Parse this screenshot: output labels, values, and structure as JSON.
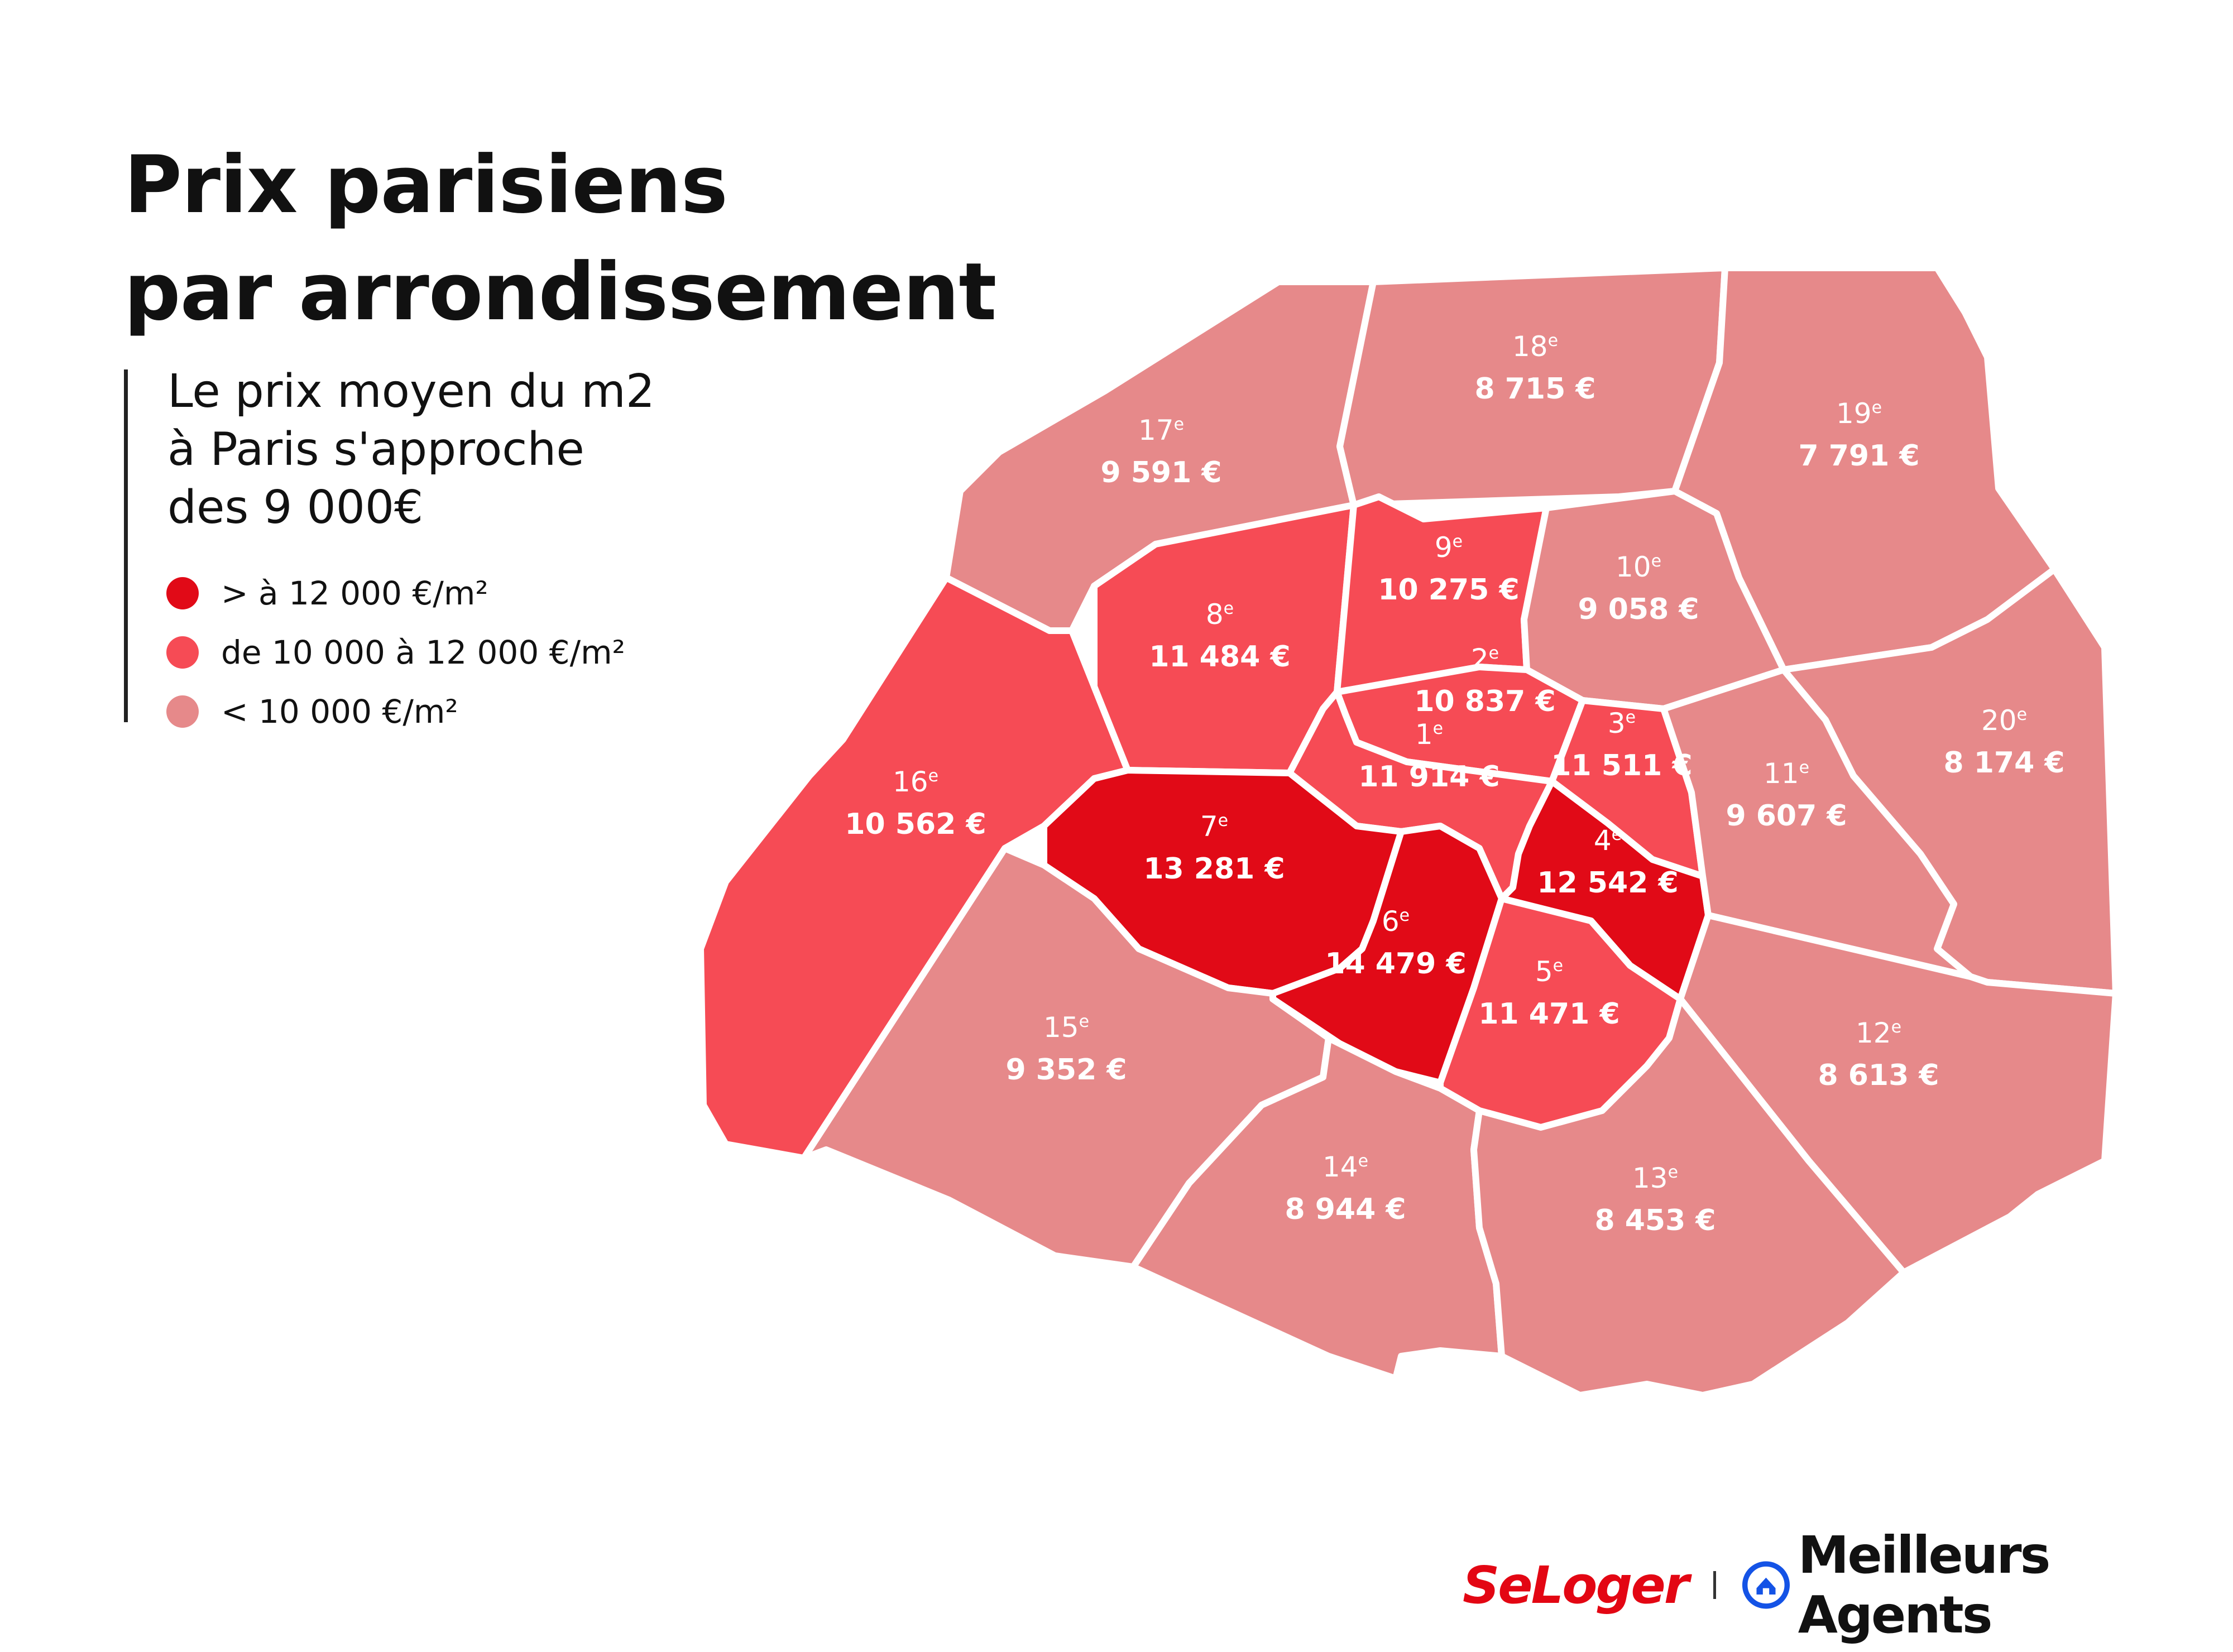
{
  "title": {
    "line1": "Prix parisiens",
    "line2": "par arrondissement"
  },
  "subtitle": {
    "line1": "Le prix moyen du m2",
    "line2": "à Paris s'approche",
    "line3": "des 9 000€"
  },
  "colors": {
    "high": "#e10a17",
    "mid": "#f64b55",
    "low": "#e6898a",
    "border": "#ffffff"
  },
  "legend": [
    {
      "label": "> à 12 000 €/m²",
      "level": "high"
    },
    {
      "label": "de 10 000 à 12 000 €/m²",
      "level": "mid"
    },
    {
      "label": "< 10 000 €/m²",
      "level": "low"
    }
  ],
  "arrondissements": [
    {
      "id": "1",
      "num": "1",
      "sup": "e",
      "price": "11 914 €",
      "level": "mid"
    },
    {
      "id": "2",
      "num": "2",
      "sup": "e",
      "price": "10 837 €",
      "level": "mid"
    },
    {
      "id": "3",
      "num": "3",
      "sup": "e",
      "price": "11 511 €",
      "level": "mid"
    },
    {
      "id": "4",
      "num": "4",
      "sup": "e",
      "price": "12 542 €",
      "level": "high"
    },
    {
      "id": "5",
      "num": "5",
      "sup": "e",
      "price": "11 471 €",
      "level": "mid"
    },
    {
      "id": "6",
      "num": "6",
      "sup": "e",
      "price": "14 479 €",
      "level": "high"
    },
    {
      "id": "7",
      "num": "7",
      "sup": "e",
      "price": "13 281 €",
      "level": "high"
    },
    {
      "id": "8",
      "num": "8",
      "sup": "e",
      "price": "11 484 €",
      "level": "mid"
    },
    {
      "id": "9",
      "num": "9",
      "sup": "e",
      "price": "10 275 €",
      "level": "mid"
    },
    {
      "id": "10",
      "num": "10",
      "sup": "e",
      "price": "9 058 €",
      "level": "low"
    },
    {
      "id": "11",
      "num": "11",
      "sup": "e",
      "price": "9 607 €",
      "level": "low"
    },
    {
      "id": "12",
      "num": "12",
      "sup": "e",
      "price": "8 613 €",
      "level": "low"
    },
    {
      "id": "13",
      "num": "13",
      "sup": "e",
      "price": "8 453 €",
      "level": "low"
    },
    {
      "id": "14",
      "num": "14",
      "sup": "e",
      "price": "8 944 €",
      "level": "low"
    },
    {
      "id": "15",
      "num": "15",
      "sup": "e",
      "price": "9 352 €",
      "level": "low"
    },
    {
      "id": "16",
      "num": "16",
      "sup": "e",
      "price": "10 562 €",
      "level": "mid"
    },
    {
      "id": "17",
      "num": "17",
      "sup": "e",
      "price": "9 591 €",
      "level": "low"
    },
    {
      "id": "18",
      "num": "18",
      "sup": "e",
      "price": "8 715 €",
      "level": "low"
    },
    {
      "id": "19",
      "num": "19",
      "sup": "e",
      "price": "7 791 €",
      "level": "low"
    },
    {
      "id": "20",
      "num": "20",
      "sup": "e",
      "price": "8 174 €",
      "level": "low"
    }
  ],
  "logos": {
    "seloger": "SeLoger",
    "meilleurs_agents": "Meilleurs Agents"
  }
}
